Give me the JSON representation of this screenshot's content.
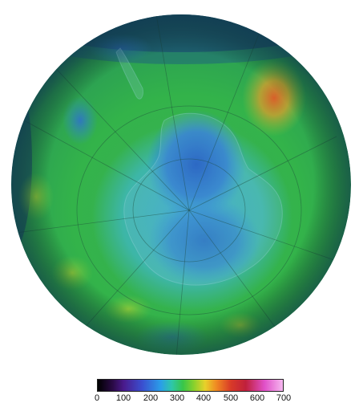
{
  "colorbar": {
    "ticks": [
      "0",
      "100",
      "200",
      "300",
      "400",
      "500",
      "600",
      "700"
    ],
    "min": 0,
    "max": 700,
    "colors": [
      "#000000",
      "#4a1a8c",
      "#2a9ee8",
      "#38c648",
      "#e8d12a",
      "#d83a28",
      "#e050c8",
      "#f6b8f0"
    ]
  },
  "map": {
    "projection": "orthographic, south polar view",
    "ocean_colors": {
      "hole_core": "#1f62c8",
      "hole_edge": "#3aa7d8",
      "midlat": "#2fbf4a",
      "peak": "#d8702a",
      "limb": "#15375a"
    }
  }
}
